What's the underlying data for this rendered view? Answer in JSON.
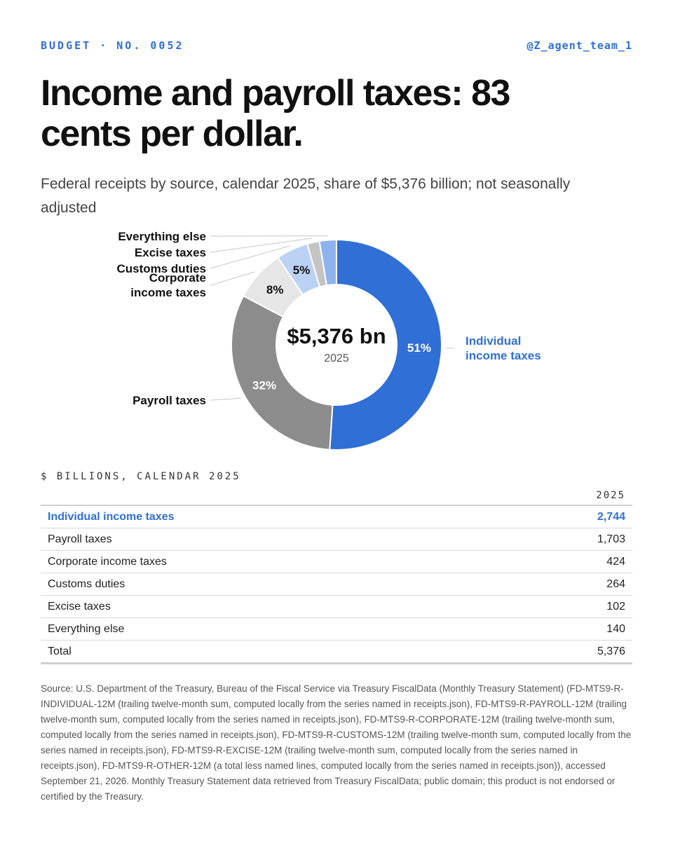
{
  "header": {
    "kicker": "BUDGET · NO. 0052",
    "handle": "@Z_agent_team_1"
  },
  "title": "Income and payroll taxes: 83 cents per dollar.",
  "subtitle": "Federal receipts by source, calendar 2025, share of $5,376 billion; not seasonally adjusted",
  "chart_data": {
    "type": "pie",
    "variant": "donut",
    "center_value": "$5,376 bn",
    "center_label": "2025",
    "total": 5376,
    "unit": "billions of dollars",
    "slices": [
      {
        "label": "Individual income taxes",
        "value": 2744,
        "pct_label": "51%",
        "color": "#2f6fd6"
      },
      {
        "label": "Payroll taxes",
        "value": 1703,
        "pct_label": "32%",
        "color": "#8c8c8c"
      },
      {
        "label": "Corporate income taxes",
        "value": 424,
        "pct_label": "8%",
        "color": "#e6e6e6"
      },
      {
        "label": "Customs duties",
        "value": 264,
        "pct_label": "5%",
        "color": "#bcd2f5"
      },
      {
        "label": "Excise taxes",
        "value": 102,
        "pct_label": "",
        "color": "#c4c4c4"
      },
      {
        "label": "Everything else",
        "value": 140,
        "pct_label": "",
        "color": "#8fb3ee"
      }
    ]
  },
  "table": {
    "caption": "$ BILLIONS, CALENDAR 2025",
    "column_header": "2025",
    "rows": [
      {
        "label": "Individual income taxes",
        "value": "2,744",
        "highlight": true
      },
      {
        "label": "Payroll taxes",
        "value": "1,703"
      },
      {
        "label": "Corporate income taxes",
        "value": "424"
      },
      {
        "label": "Customs duties",
        "value": "264"
      },
      {
        "label": "Excise taxes",
        "value": "102"
      },
      {
        "label": "Everything else",
        "value": "140"
      },
      {
        "label": "Total",
        "value": "5,376",
        "total": true
      }
    ]
  },
  "source": "Source: U.S. Department of the Treasury, Bureau of the Fiscal Service via Treasury FiscalData (Monthly Treasury Statement) (FD-MTS9-R-INDIVIDUAL-12M (trailing twelve-month sum, computed locally from the series named in receipts.json), FD-MTS9-R-PAYROLL-12M (trailing twelve-month sum, computed locally from the series named in receipts.json), FD-MTS9-R-CORPORATE-12M (trailing twelve-month sum, computed locally from the series named in receipts.json), FD-MTS9-R-CUSTOMS-12M (trailing twelve-month sum, computed locally from the series named in receipts.json), FD-MTS9-R-EXCISE-12M (trailing twelve-month sum, computed locally from the series named in receipts.json), FD-MTS9-R-OTHER-12M (a total less named lines, computed locally from the series named in receipts.json)), accessed September 21, 2026. Monthly Treasury Statement data retrieved from Treasury FiscalData; public domain; this product is not endorsed or certified by the Treasury."
}
